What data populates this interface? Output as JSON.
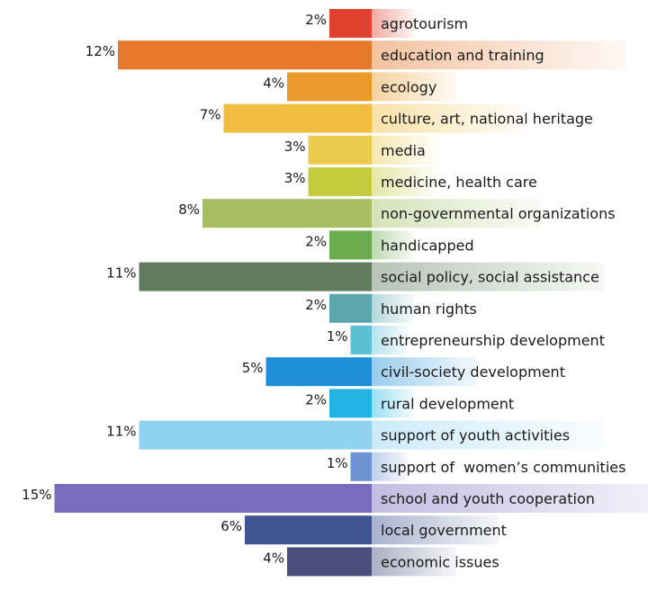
{
  "chart_data": {
    "type": "bar",
    "orientation": "horizontal",
    "title": "",
    "xlabel": "",
    "ylabel": "",
    "value_unit": "%",
    "categories": [
      "agrotourism",
      "education and training",
      "ecology",
      "culture, art, national heritage",
      "media",
      "medicine, health care",
      "non-governmental organizations",
      "handicapped",
      "social policy, social assistance",
      "human rights",
      "entrepreneurship development",
      "civil-society development",
      "rural development",
      "support of youth activities",
      "support of  women’s communities",
      "school and youth cooperation",
      "local government",
      "economic issues"
    ],
    "values": [
      2,
      12,
      4,
      7,
      3,
      3,
      8,
      2,
      11,
      2,
      1,
      5,
      2,
      11,
      1,
      15,
      6,
      4
    ],
    "data_labels": [
      "2%",
      "12%",
      "4%",
      "7%",
      "3%",
      "3%",
      "8%",
      "2%",
      "11%",
      "2%",
      "1%",
      "5%",
      "2%",
      "11%",
      "1%",
      "15%",
      "6%",
      "4%"
    ],
    "colors": [
      "#e0402f",
      "#e5782a",
      "#e89a2a",
      "#f0bd3e",
      "#eacb4e",
      "#c4cb3c",
      "#a7bd62",
      "#6aac4e",
      "#5f7a5c",
      "#5aa6ac",
      "#5bc0d3",
      "#1e8ed6",
      "#23b4e4",
      "#8fd3f0",
      "#6c94d0",
      "#7a6cbe",
      "#3f5592",
      "#4a4e7a"
    ]
  }
}
